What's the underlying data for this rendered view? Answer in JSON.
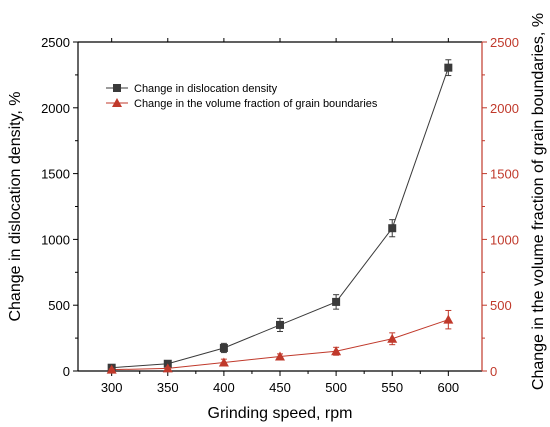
{
  "chart_data": {
    "type": "line",
    "title": "",
    "xlabel": "Grinding speed, rpm",
    "ylabel": "Change in dislocation density, %",
    "y2label": "Change in the volume fraction of grain boundaries, %",
    "xlim": [
      270,
      630
    ],
    "ylim": [
      0,
      2500
    ],
    "y2lim": [
      0,
      2500
    ],
    "x_ticks": [
      300,
      350,
      400,
      450,
      500,
      550,
      600
    ],
    "y_ticks": [
      0,
      500,
      1000,
      1500,
      2000,
      2500
    ],
    "y2_ticks": [
      0,
      500,
      1000,
      1500,
      2000,
      2500
    ],
    "grid": false,
    "legend_position": "top-left",
    "series": [
      {
        "name": "Change in dislocation density",
        "axis": "left",
        "marker": "square",
        "color": "#3a3a3a",
        "x": [
          300,
          350,
          400,
          450,
          500,
          550,
          600
        ],
        "values": [
          25,
          55,
          175,
          350,
          525,
          1085,
          2305
        ],
        "errors": [
          10,
          10,
          35,
          50,
          55,
          65,
          60
        ]
      },
      {
        "name": "Change in the volume fraction of grain boundaries",
        "axis": "right",
        "marker": "triangle",
        "color": "#c0392b",
        "x": [
          300,
          350,
          400,
          450,
          500,
          550,
          600
        ],
        "values": [
          10,
          20,
          65,
          110,
          150,
          245,
          390
        ],
        "errors": [
          5,
          8,
          25,
          20,
          30,
          45,
          70
        ]
      }
    ]
  }
}
